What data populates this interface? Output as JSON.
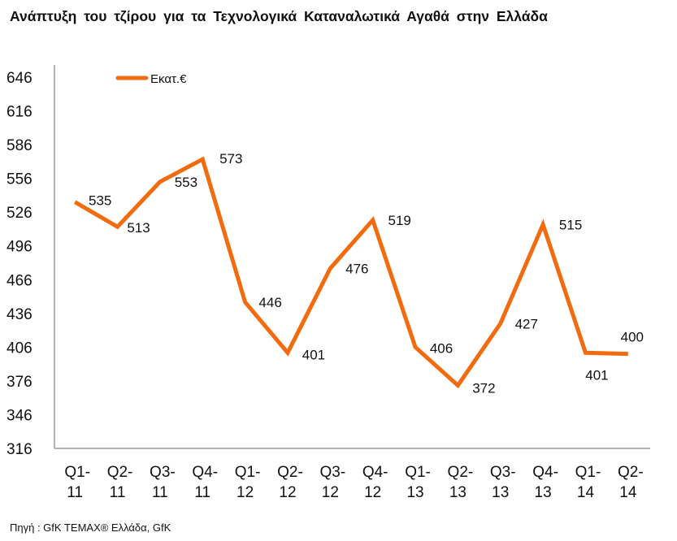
{
  "chart_data": {
    "type": "line",
    "title": "Ανάπτυξη του τζίρου για τα Τεχνολογικά Καταναλωτικά Αγαθά στην Ελλάδα",
    "categories": [
      "Q1-11",
      "Q2-11",
      "Q3-11",
      "Q4-11",
      "Q1-12",
      "Q2-12",
      "Q3-12",
      "Q4-12",
      "Q1-13",
      "Q2-13",
      "Q3-13",
      "Q4-13",
      "Q1-14",
      "Q2-14"
    ],
    "series": [
      {
        "name": "Εκατ.€",
        "color": "#F26B0F",
        "values": [
          535,
          513,
          553,
          573,
          446,
          401,
          476,
          519,
          406,
          372,
          427,
          515,
          401,
          400
        ]
      }
    ],
    "yticks": [
      316,
      346,
      376,
      406,
      436,
      466,
      496,
      526,
      556,
      586,
      616,
      646
    ],
    "ylim": [
      316,
      646
    ],
    "xlabel": "",
    "ylabel": "",
    "grid": false,
    "legend": "top-left"
  },
  "source": "Πηγή : GfK TEMAX® Ελλάδα, GfK"
}
